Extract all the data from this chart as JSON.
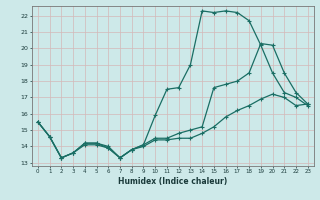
{
  "xlabel": "Humidex (Indice chaleur)",
  "bg_color": "#cde9e9",
  "line_color": "#1a6e64",
  "grid_color": "#d4b8b8",
  "xlim": [
    -0.5,
    23.5
  ],
  "ylim": [
    12.8,
    22.6
  ],
  "xticks": [
    0,
    1,
    2,
    3,
    4,
    5,
    6,
    7,
    8,
    9,
    10,
    11,
    12,
    13,
    14,
    15,
    16,
    17,
    18,
    19,
    20,
    21,
    22,
    23
  ],
  "yticks": [
    13,
    14,
    15,
    16,
    17,
    18,
    19,
    20,
    21,
    22
  ],
  "line1_x": [
    0,
    1,
    2,
    3,
    4,
    5,
    6,
    7,
    8,
    9,
    10,
    11,
    12,
    13,
    14,
    15,
    16,
    17,
    18,
    19,
    20,
    21,
    22,
    23
  ],
  "line1_y": [
    15.5,
    14.6,
    13.3,
    13.6,
    14.2,
    14.2,
    13.9,
    13.3,
    13.8,
    14.0,
    14.4,
    14.4,
    14.5,
    14.5,
    14.8,
    15.2,
    15.8,
    16.2,
    16.5,
    16.9,
    17.2,
    17.0,
    16.5,
    16.6
  ],
  "line2_x": [
    0,
    1,
    2,
    3,
    4,
    5,
    6,
    7,
    8,
    9,
    10,
    11,
    12,
    13,
    14,
    15,
    16,
    17,
    18,
    19,
    20,
    21,
    22,
    23
  ],
  "line2_y": [
    15.5,
    14.6,
    13.3,
    13.6,
    14.1,
    14.1,
    13.9,
    13.3,
    13.8,
    14.1,
    15.9,
    17.5,
    17.6,
    19.0,
    22.3,
    22.2,
    22.3,
    22.2,
    21.7,
    20.2,
    18.5,
    17.3,
    17.0,
    16.5
  ],
  "line3_x": [
    0,
    1,
    2,
    3,
    4,
    5,
    6,
    7,
    8,
    9,
    10,
    11,
    12,
    13,
    14,
    15,
    16,
    17,
    18,
    19,
    20,
    21,
    22,
    23
  ],
  "line3_y": [
    15.5,
    14.6,
    13.3,
    13.6,
    14.2,
    14.2,
    14.0,
    13.3,
    13.8,
    14.1,
    14.5,
    14.5,
    14.8,
    15.0,
    15.2,
    17.6,
    17.8,
    18.0,
    18.5,
    20.3,
    20.2,
    18.5,
    17.3,
    16.6
  ]
}
